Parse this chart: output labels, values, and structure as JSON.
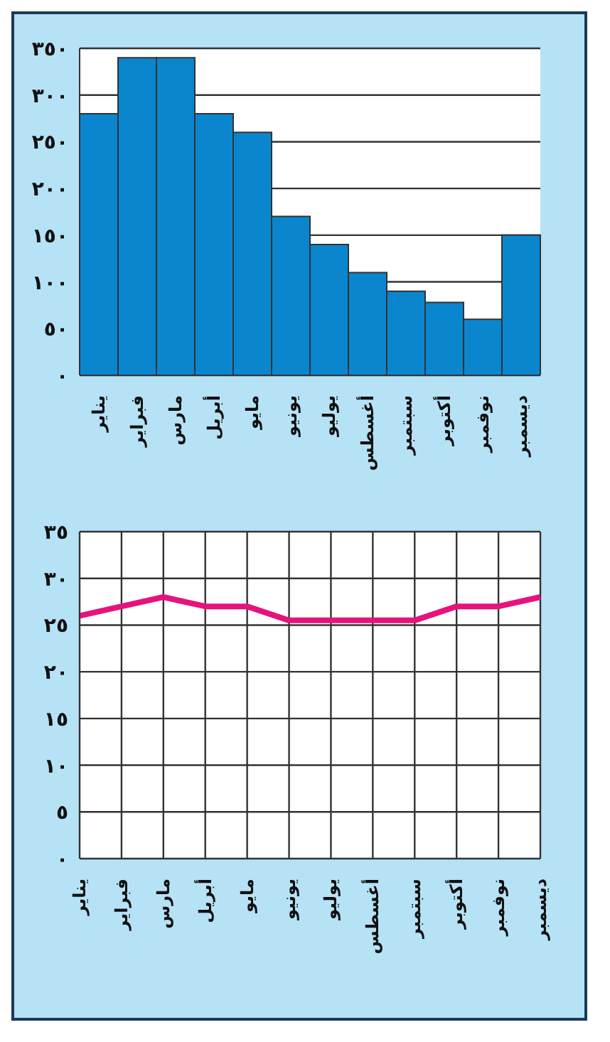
{
  "chart_data": [
    {
      "type": "bar",
      "categories": [
        "يناير",
        "فبراير",
        "مارس",
        "أبريل",
        "مايو",
        "يونيو",
        "يوليو",
        "أغسطس",
        "سبتمبر",
        "أكتوبر",
        "نوفمبر",
        "ديسمبر"
      ],
      "values": [
        280,
        340,
        340,
        280,
        260,
        170,
        140,
        110,
        90,
        78,
        60,
        150
      ],
      "color": "#0a86cf",
      "ylim": [
        0,
        350
      ],
      "yticks": [
        {
          "value": 0,
          "label": "٠"
        },
        {
          "value": 50,
          "label": "٥٠"
        },
        {
          "value": 100,
          "label": "١٠٠"
        },
        {
          "value": 150,
          "label": "١٥٠"
        },
        {
          "value": 200,
          "label": "٢٠٠"
        },
        {
          "value": 250,
          "label": "٢٥٠"
        },
        {
          "value": 300,
          "label": "٣٠٠"
        },
        {
          "value": 350,
          "label": "٣٥٠"
        }
      ],
      "grid": true
    },
    {
      "type": "line",
      "categories": [
        "يناير",
        "فبراير",
        "مارس",
        "أبريل",
        "مايو",
        "يونيو",
        "يوليو",
        "أغسطس",
        "سبتمبر",
        "أكتوبر",
        "نوفمبر",
        "ديسمبر"
      ],
      "values": [
        26,
        27,
        28,
        27,
        27,
        25.5,
        25.5,
        25.5,
        25.5,
        27,
        27,
        28
      ],
      "color": "#e6137c",
      "ylim": [
        0,
        35
      ],
      "yticks": [
        {
          "value": 0,
          "label": "٠"
        },
        {
          "value": 5,
          "label": "٥"
        },
        {
          "value": 10,
          "label": "١٠"
        },
        {
          "value": 15,
          "label": "١٥"
        },
        {
          "value": 20,
          "label": "٢٠"
        },
        {
          "value": 25,
          "label": "٢٥"
        },
        {
          "value": 30,
          "label": "٣٠"
        },
        {
          "value": 35,
          "label": "٣٥"
        }
      ],
      "grid": true
    }
  ]
}
